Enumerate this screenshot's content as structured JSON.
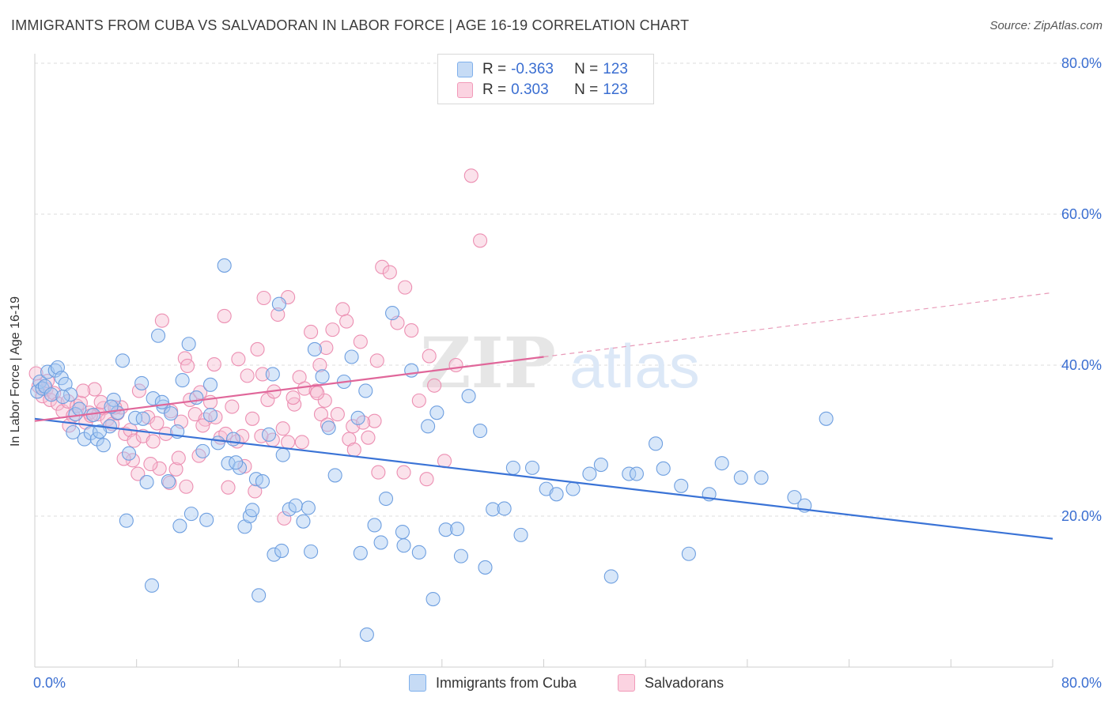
{
  "title": "IMMIGRANTS FROM CUBA VS SALVADORAN IN LABOR FORCE | AGE 16-19 CORRELATION CHART",
  "source": "Source: ZipAtlas.com",
  "watermark": {
    "zip": "ZIP",
    "atlas": "atlas"
  },
  "legend_top": [
    {
      "r_label": "R =",
      "r_value": "-0.363",
      "n_label": "N =",
      "n_value": "123",
      "color": "#7fb0ec"
    },
    {
      "r_label": "R =",
      "r_value": "0.303",
      "n_label": "N =",
      "n_value": "123",
      "color": "#f29ab9"
    }
  ],
  "legend_bottom": [
    {
      "label": "Immigrants from Cuba",
      "color": "#7fb0ec"
    },
    {
      "label": "Salvadorans",
      "color": "#f29ab9"
    }
  ],
  "colors": {
    "blue_line": "#3a73d6",
    "pink_line": "#e0679a",
    "blue_fill": "#a9c9f2",
    "pink_fill": "#f7bfd3",
    "axis_text": "#3a6ed1",
    "grid": "#dddddd"
  },
  "chart_data": {
    "type": "scatter",
    "title": "IMMIGRANTS FROM CUBA VS SALVADORAN IN LABOR FORCE | AGE 16-19 CORRELATION CHART",
    "xlabel": "",
    "ylabel": "In Labor Force | Age 16-19",
    "xlim": [
      0,
      80
    ],
    "ylim": [
      0,
      80
    ],
    "x_tick_labels": [
      "0.0%",
      "80.0%"
    ],
    "y_tick_labels": [
      "20.0%",
      "40.0%",
      "60.0%",
      "80.0%"
    ],
    "y_ticks": [
      20,
      40,
      60,
      80
    ],
    "grid": "horizontal dashed",
    "series": [
      {
        "name": "Immigrants from Cuba",
        "r": -0.363,
        "n": 123,
        "trend": {
          "x0": 0,
          "y0": 32.9,
          "x1": 80,
          "y1": 17.0
        },
        "points": [
          [
            0.2,
            36.5
          ],
          [
            0.4,
            37.8
          ],
          [
            0.6,
            36.9
          ],
          [
            0.8,
            37.2
          ],
          [
            1.0,
            39.1
          ],
          [
            1.3,
            36.1
          ],
          [
            1.6,
            39.3
          ],
          [
            1.8,
            39.7
          ],
          [
            2.1,
            38.3
          ],
          [
            2.4,
            37.5
          ],
          [
            2.8,
            36.1
          ],
          [
            3.2,
            33.5
          ],
          [
            3.5,
            34.2
          ],
          [
            3.9,
            30.2
          ],
          [
            4.4,
            31.0
          ],
          [
            4.9,
            30.2
          ],
          [
            5.4,
            29.4
          ],
          [
            5.9,
            31.9
          ],
          [
            6.2,
            35.4
          ],
          [
            6.5,
            33.7
          ],
          [
            6.9,
            40.6
          ],
          [
            7.4,
            28.3
          ],
          [
            7.9,
            33.0
          ],
          [
            8.4,
            37.6
          ],
          [
            8.8,
            24.5
          ],
          [
            9.3,
            35.6
          ],
          [
            9.7,
            43.9
          ],
          [
            10.1,
            34.5
          ],
          [
            10.5,
            24.6
          ],
          [
            10.7,
            33.6
          ],
          [
            11.2,
            31.2
          ],
          [
            11.6,
            38.0
          ],
          [
            12.1,
            42.8
          ],
          [
            12.7,
            35.7
          ],
          [
            13.2,
            28.6
          ],
          [
            13.8,
            37.4
          ],
          [
            14.4,
            29.7
          ],
          [
            14.9,
            53.2
          ],
          [
            15.2,
            27.0
          ],
          [
            15.6,
            30.2
          ],
          [
            16.1,
            26.4
          ],
          [
            16.5,
            18.6
          ],
          [
            16.9,
            20.0
          ],
          [
            17.4,
            24.9
          ],
          [
            17.9,
            24.6
          ],
          [
            18.4,
            30.8
          ],
          [
            18.7,
            38.8
          ],
          [
            19.2,
            48.1
          ],
          [
            19.5,
            28.1
          ],
          [
            20.0,
            20.9
          ],
          [
            20.5,
            21.4
          ],
          [
            21.1,
            19.3
          ],
          [
            21.5,
            21.1
          ],
          [
            22.0,
            42.1
          ],
          [
            22.6,
            38.5
          ],
          [
            23.1,
            31.7
          ],
          [
            23.6,
            25.4
          ],
          [
            24.3,
            37.8
          ],
          [
            24.9,
            41.1
          ],
          [
            25.4,
            33.0
          ],
          [
            26.0,
            36.6
          ],
          [
            26.7,
            18.8
          ],
          [
            27.2,
            16.5
          ],
          [
            27.6,
            22.3
          ],
          [
            28.1,
            46.9
          ],
          [
            28.9,
            17.9
          ],
          [
            29.6,
            39.3
          ],
          [
            30.2,
            15.2
          ],
          [
            30.9,
            31.9
          ],
          [
            31.6,
            33.7
          ],
          [
            32.3,
            18.2
          ],
          [
            33.2,
            18.3
          ],
          [
            34.1,
            35.9
          ],
          [
            35.0,
            31.3
          ],
          [
            36.0,
            20.9
          ],
          [
            36.9,
            21.0
          ],
          [
            37.6,
            26.4
          ],
          [
            38.2,
            17.5
          ],
          [
            39.1,
            26.4
          ],
          [
            40.2,
            23.6
          ],
          [
            41.0,
            22.9
          ],
          [
            42.3,
            23.6
          ],
          [
            43.6,
            25.6
          ],
          [
            44.5,
            26.8
          ],
          [
            45.3,
            12.0
          ],
          [
            46.7,
            25.6
          ],
          [
            47.3,
            25.6
          ],
          [
            48.8,
            29.6
          ],
          [
            49.4,
            26.3
          ],
          [
            50.8,
            24.0
          ],
          [
            51.4,
            15.0
          ],
          [
            53.0,
            22.9
          ],
          [
            54.0,
            27.0
          ],
          [
            55.5,
            25.1
          ],
          [
            57.1,
            25.1
          ],
          [
            59.7,
            22.5
          ],
          [
            60.5,
            21.4
          ],
          [
            62.2,
            32.9
          ],
          [
            5.1,
            31.2
          ],
          [
            7.2,
            19.4
          ],
          [
            9.2,
            10.8
          ],
          [
            11.4,
            18.7
          ],
          [
            12.3,
            20.3
          ],
          [
            13.5,
            19.5
          ],
          [
            17.1,
            20.8
          ],
          [
            18.8,
            14.9
          ],
          [
            19.4,
            15.4
          ],
          [
            21.7,
            15.3
          ],
          [
            25.6,
            15.1
          ],
          [
            29.0,
            16.1
          ],
          [
            31.3,
            9.0
          ],
          [
            33.5,
            14.7
          ],
          [
            35.4,
            13.2
          ],
          [
            26.1,
            4.3
          ],
          [
            17.6,
            9.5
          ],
          [
            8.5,
            32.9
          ],
          [
            10.0,
            35.1
          ],
          [
            13.8,
            33.4
          ],
          [
            6.0,
            34.5
          ],
          [
            3.0,
            31.1
          ],
          [
            2.2,
            35.8
          ],
          [
            4.6,
            33.4
          ],
          [
            15.8,
            27.1
          ]
        ]
      },
      {
        "name": "Salvadorans",
        "r": 0.303,
        "n": 123,
        "trend": {
          "x0": 0,
          "y0": 32.6,
          "x1": 80,
          "y1": 49.6
        },
        "points": [
          [
            0.1,
            38.9
          ],
          [
            0.3,
            37.2
          ],
          [
            0.6,
            35.9
          ],
          [
            0.9,
            36.8
          ],
          [
            1.2,
            35.4
          ],
          [
            1.5,
            36.3
          ],
          [
            1.8,
            34.9
          ],
          [
            2.2,
            33.9
          ],
          [
            2.6,
            35.2
          ],
          [
            3.0,
            33.3
          ],
          [
            3.3,
            34.6
          ],
          [
            3.6,
            35.0
          ],
          [
            4.0,
            32.4
          ],
          [
            4.3,
            33.7
          ],
          [
            4.7,
            36.8
          ],
          [
            5.0,
            33.5
          ],
          [
            5.4,
            34.3
          ],
          [
            5.7,
            32.8
          ],
          [
            6.1,
            32.2
          ],
          [
            6.5,
            33.6
          ],
          [
            6.8,
            34.4
          ],
          [
            7.1,
            30.9
          ],
          [
            7.5,
            31.4
          ],
          [
            7.8,
            30.0
          ],
          [
            8.2,
            36.6
          ],
          [
            8.5,
            30.6
          ],
          [
            8.9,
            33.1
          ],
          [
            9.3,
            29.9
          ],
          [
            9.6,
            32.3
          ],
          [
            10.0,
            45.9
          ],
          [
            10.3,
            30.9
          ],
          [
            10.7,
            33.9
          ],
          [
            11.1,
            26.2
          ],
          [
            11.5,
            32.5
          ],
          [
            11.8,
            40.9
          ],
          [
            12.2,
            35.4
          ],
          [
            12.6,
            33.5
          ],
          [
            13.0,
            36.4
          ],
          [
            13.4,
            32.8
          ],
          [
            13.8,
            35.1
          ],
          [
            14.2,
            33.1
          ],
          [
            14.6,
            30.4
          ],
          [
            15.0,
            30.9
          ],
          [
            15.5,
            34.5
          ],
          [
            15.9,
            29.9
          ],
          [
            16.3,
            30.6
          ],
          [
            16.7,
            38.6
          ],
          [
            17.1,
            32.9
          ],
          [
            17.5,
            42.1
          ],
          [
            17.9,
            38.8
          ],
          [
            18.3,
            35.4
          ],
          [
            18.7,
            30.1
          ],
          [
            19.1,
            46.7
          ],
          [
            19.5,
            31.6
          ],
          [
            19.9,
            29.8
          ],
          [
            20.4,
            34.8
          ],
          [
            20.8,
            38.4
          ],
          [
            21.2,
            36.9
          ],
          [
            21.7,
            44.4
          ],
          [
            22.1,
            36.6
          ],
          [
            22.5,
            33.5
          ],
          [
            22.9,
            42.3
          ],
          [
            23.4,
            44.7
          ],
          [
            23.8,
            33.5
          ],
          [
            24.2,
            47.4
          ],
          [
            24.7,
            30.2
          ],
          [
            25.1,
            28.8
          ],
          [
            25.6,
            43.1
          ],
          [
            26.2,
            30.4
          ],
          [
            26.7,
            32.6
          ],
          [
            27.3,
            53.0
          ],
          [
            27.9,
            52.3
          ],
          [
            28.5,
            45.6
          ],
          [
            29.1,
            50.3
          ],
          [
            29.6,
            44.6
          ],
          [
            30.2,
            35.3
          ],
          [
            30.8,
            24.9
          ],
          [
            31.4,
            37.3
          ],
          [
            32.2,
            27.3
          ],
          [
            33.1,
            40.0
          ],
          [
            34.3,
            65.1
          ],
          [
            35.0,
            56.5
          ],
          [
            1.0,
            37.9
          ],
          [
            2.7,
            32.0
          ],
          [
            4.4,
            33.3
          ],
          [
            6.3,
            34.4
          ],
          [
            7.7,
            27.4
          ],
          [
            9.8,
            26.3
          ],
          [
            11.3,
            27.7
          ],
          [
            13.2,
            32.0
          ],
          [
            15.2,
            23.8
          ],
          [
            17.3,
            23.3
          ],
          [
            19.6,
            19.7
          ],
          [
            21.0,
            29.8
          ],
          [
            23.0,
            32.1
          ],
          [
            25.0,
            31.9
          ],
          [
            27.0,
            25.8
          ],
          [
            29.0,
            25.8
          ],
          [
            31.0,
            41.2
          ],
          [
            12.0,
            39.9
          ],
          [
            14.1,
            40.1
          ],
          [
            16.0,
            40.8
          ],
          [
            18.0,
            48.9
          ],
          [
            19.9,
            49.0
          ],
          [
            22.4,
            40.0
          ],
          [
            24.5,
            45.8
          ],
          [
            26.9,
            40.6
          ],
          [
            8.1,
            25.6
          ],
          [
            10.6,
            24.4
          ],
          [
            14.9,
            46.5
          ],
          [
            18.8,
            36.5
          ],
          [
            20.3,
            35.7
          ],
          [
            22.8,
            35.3
          ],
          [
            9.1,
            26.9
          ],
          [
            11.9,
            23.9
          ],
          [
            16.5,
            26.6
          ],
          [
            25.8,
            32.4
          ],
          [
            7.0,
            27.6
          ],
          [
            5.2,
            35.1
          ],
          [
            3.8,
            36.6
          ],
          [
            12.9,
            28.0
          ],
          [
            17.8,
            30.6
          ],
          [
            22.2,
            36.3
          ]
        ]
      }
    ]
  }
}
